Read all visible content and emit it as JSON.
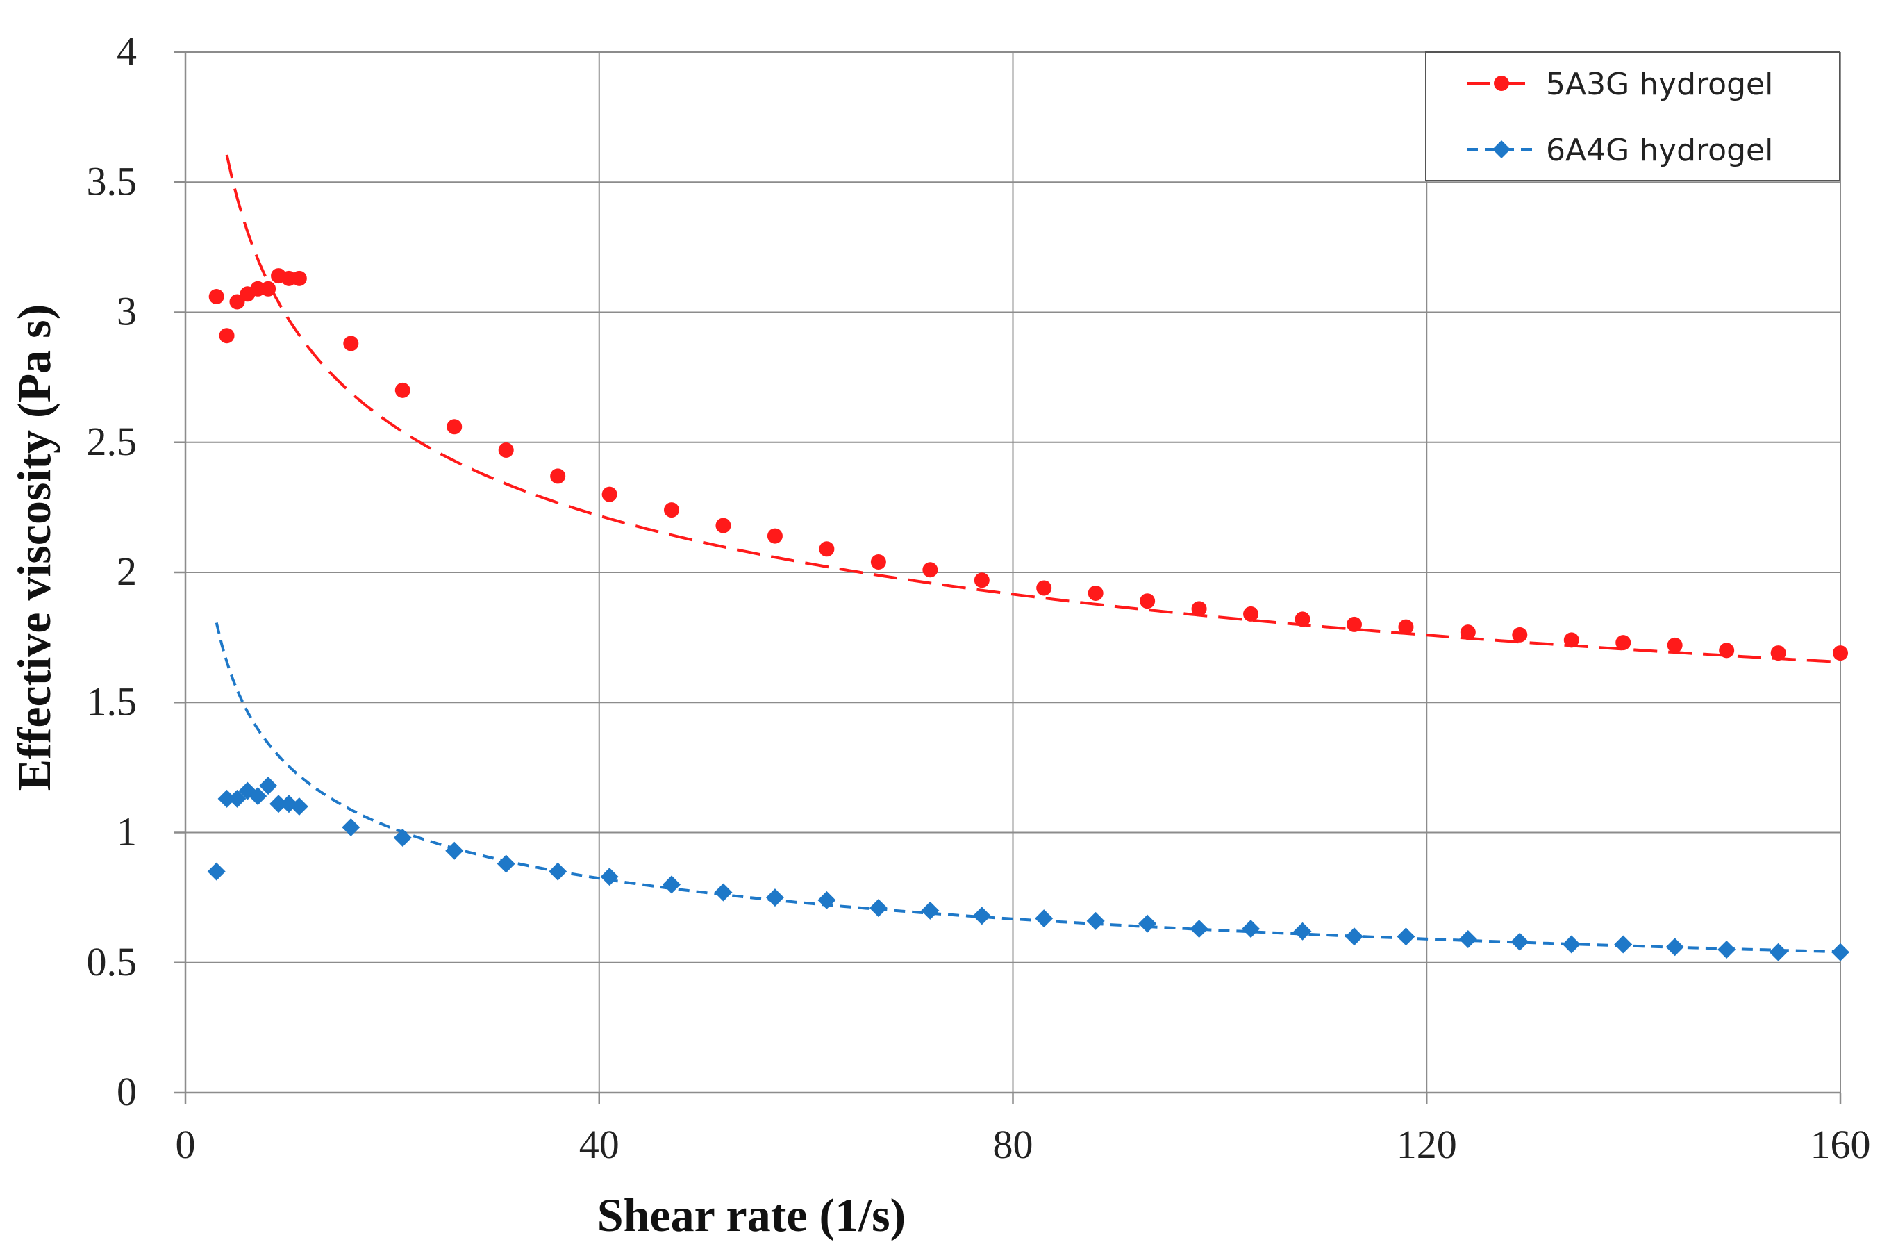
{
  "chart_data": {
    "type": "scatter",
    "title": "",
    "xlabel": "Shear rate (1/s)",
    "ylabel": "Effective viscosity (Pa s)",
    "xlim": [
      0,
      160
    ],
    "ylim": [
      0,
      4
    ],
    "xticks": [
      0,
      40,
      80,
      120,
      160
    ],
    "xtick_labels": [
      "0",
      "40",
      "80",
      "120",
      "160"
    ],
    "yticks": [
      0,
      0.5,
      1,
      1.5,
      2,
      2.5,
      3,
      3.5,
      4
    ],
    "ytick_labels": [
      "0",
      "0.5",
      "1",
      "1.5",
      "2",
      "2.5",
      "3",
      "3.5",
      "4"
    ],
    "grid": true,
    "legend_position": "top-right",
    "series": [
      {
        "name": "5A3G hydrogel",
        "color": "#ff1a1a",
        "marker": "circle",
        "line_style": "long-dash",
        "x": [
          3,
          4,
          5,
          6,
          7,
          8,
          9,
          10,
          11,
          16,
          21,
          26,
          31,
          36,
          41,
          47,
          52,
          57,
          62,
          67,
          72,
          77,
          83,
          88,
          93,
          98,
          103,
          108,
          113,
          118,
          124,
          129,
          134,
          139,
          144,
          149,
          154,
          160
        ],
        "y": [
          3.06,
          2.91,
          3.04,
          3.07,
          3.09,
          3.09,
          3.14,
          3.13,
          3.13,
          2.88,
          2.7,
          2.56,
          2.47,
          2.37,
          2.3,
          2.24,
          2.18,
          2.14,
          2.09,
          2.04,
          2.01,
          1.97,
          1.94,
          1.92,
          1.89,
          1.86,
          1.84,
          1.82,
          1.8,
          1.79,
          1.77,
          1.76,
          1.74,
          1.73,
          1.72,
          1.7,
          1.69,
          1.69
        ],
        "fit": {
          "model": "power",
          "a": 4.83,
          "b": -0.211,
          "x_from": 4,
          "x_to": 160
        }
      },
      {
        "name": "6A4G hydrogel",
        "color": "#1e78c8",
        "marker": "diamond",
        "line_style": "short-dash",
        "x": [
          3,
          4,
          5,
          6,
          7,
          8,
          9,
          10,
          11,
          16,
          21,
          26,
          31,
          36,
          41,
          47,
          52,
          57,
          62,
          67,
          72,
          77,
          83,
          88,
          93,
          98,
          103,
          108,
          113,
          118,
          124,
          129,
          134,
          139,
          144,
          149,
          154,
          160
        ],
        "y": [
          0.85,
          1.13,
          1.13,
          1.16,
          1.14,
          1.18,
          1.11,
          1.11,
          1.1,
          1.02,
          0.98,
          0.93,
          0.88,
          0.85,
          0.83,
          0.8,
          0.77,
          0.75,
          0.74,
          0.71,
          0.7,
          0.68,
          0.67,
          0.66,
          0.65,
          0.63,
          0.63,
          0.62,
          0.6,
          0.6,
          0.59,
          0.58,
          0.57,
          0.57,
          0.56,
          0.55,
          0.54,
          0.54
        ],
        "fit": {
          "model": "power",
          "a": 2.52,
          "b": -0.303,
          "x_from": 3,
          "x_to": 160
        }
      }
    ]
  }
}
